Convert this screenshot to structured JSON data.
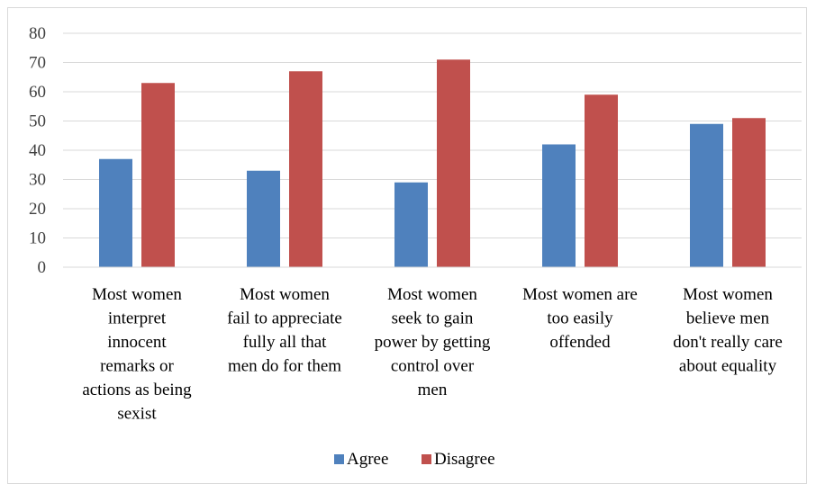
{
  "chart_data": {
    "type": "bar",
    "title": "",
    "xlabel": "",
    "ylabel": "",
    "ylim": [
      0,
      80
    ],
    "yticks": [
      0,
      10,
      20,
      30,
      40,
      50,
      60,
      70,
      80
    ],
    "grid": true,
    "legend_position": "bottom",
    "categories": [
      [
        "Most women",
        "interpret",
        "innocent",
        "remarks or",
        "actions as being",
        "sexist"
      ],
      [
        "Most women",
        "fail to appreciate",
        "fully all that",
        "men do for them"
      ],
      [
        "Most women",
        "seek to gain",
        "power by getting",
        "control over",
        "men"
      ],
      [
        "Most women are",
        "too easily",
        "offended"
      ],
      [
        "Most women",
        "believe men",
        "don't really care",
        "about equality"
      ]
    ],
    "series": [
      {
        "name": "Agree",
        "color": "#4f81bd",
        "values": [
          37,
          33,
          29,
          42,
          49
        ]
      },
      {
        "name": "Disagree",
        "color": "#c0504d",
        "values": [
          63,
          67,
          71,
          59,
          51
        ]
      }
    ]
  }
}
